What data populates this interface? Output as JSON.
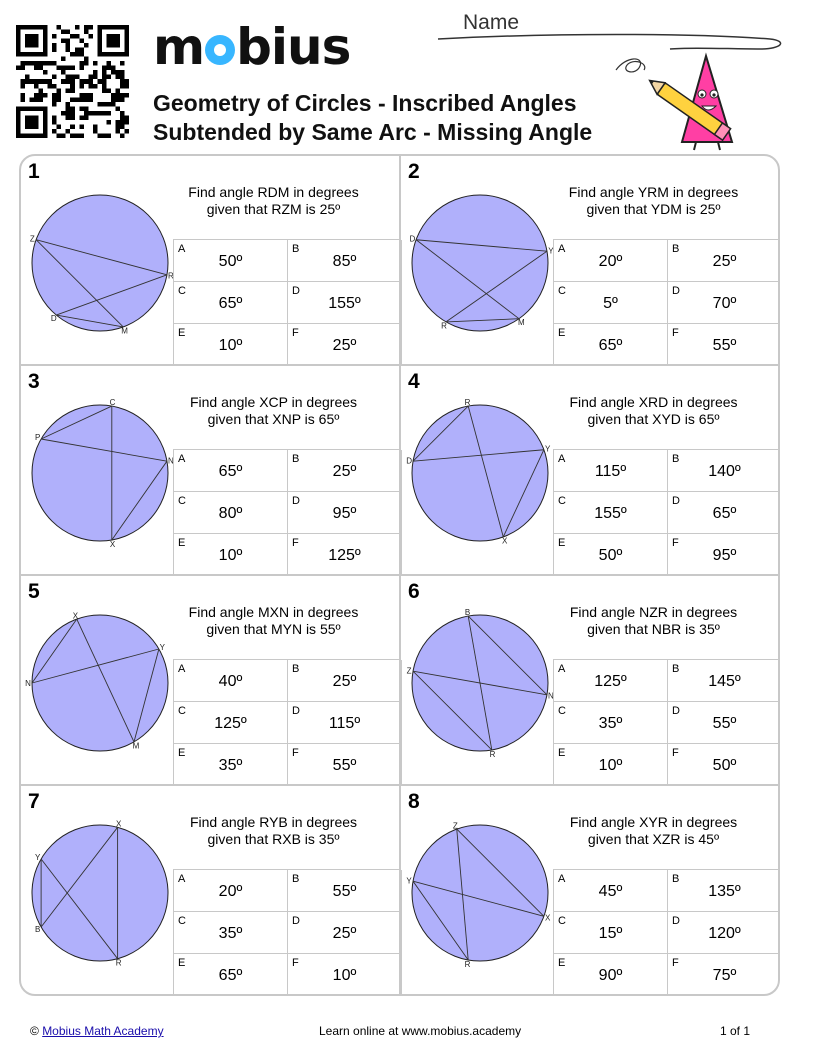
{
  "header": {
    "logo_text": "mobius",
    "title_line1": "Geometry of Circles - Inscribed Angles",
    "title_line2": "Subtended by Same Arc - Missing Angle",
    "name_label": "Name"
  },
  "problems": [
    {
      "number": "1",
      "line1": "Find angle RDM in degrees",
      "line2": "given that RZM is 25º",
      "points": [
        {
          "label": "Z",
          "angle": 160
        },
        {
          "label": "R",
          "angle": -10
        },
        {
          "label": "M",
          "angle": -70
        },
        {
          "label": "D",
          "angle": -130
        }
      ],
      "chords": [
        [
          "Z",
          "R"
        ],
        [
          "Z",
          "M"
        ],
        [
          "R",
          "D"
        ],
        [
          "D",
          "M"
        ]
      ],
      "options": [
        {
          "letter": "A",
          "value": "50º"
        },
        {
          "letter": "B",
          "value": "85º"
        },
        {
          "letter": "C",
          "value": "65º"
        },
        {
          "letter": "D",
          "value": "155º"
        },
        {
          "letter": "E",
          "value": "10º"
        },
        {
          "letter": "F",
          "value": "25º"
        }
      ]
    },
    {
      "number": "2",
      "line1": "Find angle YRM in degrees",
      "line2": "given that YDM is 25º",
      "points": [
        {
          "label": "D",
          "angle": 160
        },
        {
          "label": "Y",
          "angle": 10
        },
        {
          "label": "M",
          "angle": -55
        },
        {
          "label": "R",
          "angle": -120
        }
      ],
      "chords": [
        [
          "D",
          "Y"
        ],
        [
          "D",
          "M"
        ],
        [
          "R",
          "Y"
        ],
        [
          "R",
          "M"
        ]
      ],
      "options": [
        {
          "letter": "A",
          "value": "20º"
        },
        {
          "letter": "B",
          "value": "25º"
        },
        {
          "letter": "C",
          "value": "5º"
        },
        {
          "letter": "D",
          "value": "70º"
        },
        {
          "letter": "E",
          "value": "65º"
        },
        {
          "letter": "F",
          "value": "55º"
        }
      ]
    },
    {
      "number": "3",
      "line1": "Find angle XCP in degrees",
      "line2": "given that XNP is 65º",
      "points": [
        {
          "label": "C",
          "angle": 80
        },
        {
          "label": "N",
          "angle": 10
        },
        {
          "label": "X",
          "angle": -80
        },
        {
          "label": "P",
          "angle": 150
        }
      ],
      "chords": [
        [
          "C",
          "X"
        ],
        [
          "C",
          "P"
        ],
        [
          "N",
          "X"
        ],
        [
          "N",
          "P"
        ]
      ],
      "options": [
        {
          "letter": "A",
          "value": "65º"
        },
        {
          "letter": "B",
          "value": "25º"
        },
        {
          "letter": "C",
          "value": "80º"
        },
        {
          "letter": "D",
          "value": "95º"
        },
        {
          "letter": "E",
          "value": "10º"
        },
        {
          "letter": "F",
          "value": "125º"
        }
      ]
    },
    {
      "number": "4",
      "line1": "Find angle XRD in degrees",
      "line2": "given that XYD is 65º",
      "points": [
        {
          "label": "R",
          "angle": 100
        },
        {
          "label": "Y",
          "angle": 20
        },
        {
          "label": "X",
          "angle": -70
        },
        {
          "label": "D",
          "angle": 170
        }
      ],
      "chords": [
        [
          "R",
          "X"
        ],
        [
          "R",
          "D"
        ],
        [
          "Y",
          "X"
        ],
        [
          "Y",
          "D"
        ]
      ],
      "options": [
        {
          "letter": "A",
          "value": "115º"
        },
        {
          "letter": "B",
          "value": "140º"
        },
        {
          "letter": "C",
          "value": "155º"
        },
        {
          "letter": "D",
          "value": "65º"
        },
        {
          "letter": "E",
          "value": "50º"
        },
        {
          "letter": "F",
          "value": "95º"
        }
      ]
    },
    {
      "number": "5",
      "line1": "Find angle MXN in degrees",
      "line2": "given that MYN is 55º",
      "points": [
        {
          "label": "X",
          "angle": 110
        },
        {
          "label": "Y",
          "angle": 30
        },
        {
          "label": "M",
          "angle": -60
        },
        {
          "label": "N",
          "angle": 180
        }
      ],
      "chords": [
        [
          "X",
          "M"
        ],
        [
          "X",
          "N"
        ],
        [
          "Y",
          "M"
        ],
        [
          "Y",
          "N"
        ]
      ],
      "options": [
        {
          "letter": "A",
          "value": "40º"
        },
        {
          "letter": "B",
          "value": "25º"
        },
        {
          "letter": "C",
          "value": "125º"
        },
        {
          "letter": "D",
          "value": "115º"
        },
        {
          "letter": "E",
          "value": "35º"
        },
        {
          "letter": "F",
          "value": "55º"
        }
      ]
    },
    {
      "number": "6",
      "line1": "Find angle NZR in degrees",
      "line2": "given that NBR is 35º",
      "points": [
        {
          "label": "B",
          "angle": 100
        },
        {
          "label": "Z",
          "angle": 170
        },
        {
          "label": "R",
          "angle": -80
        },
        {
          "label": "N",
          "angle": -10
        }
      ],
      "chords": [
        [
          "Z",
          "N"
        ],
        [
          "Z",
          "R"
        ],
        [
          "B",
          "N"
        ],
        [
          "B",
          "R"
        ]
      ],
      "options": [
        {
          "letter": "A",
          "value": "125º"
        },
        {
          "letter": "B",
          "value": "145º"
        },
        {
          "letter": "C",
          "value": "35º"
        },
        {
          "letter": "D",
          "value": "55º"
        },
        {
          "letter": "E",
          "value": "10º"
        },
        {
          "letter": "F",
          "value": "50º"
        }
      ]
    },
    {
      "number": "7",
      "line1": "Find angle RYB in degrees",
      "line2": "given that RXB is 35º",
      "points": [
        {
          "label": "X",
          "angle": 75
        },
        {
          "label": "Y",
          "angle": 150
        },
        {
          "label": "B",
          "angle": -150
        },
        {
          "label": "R",
          "angle": -75
        }
      ],
      "chords": [
        [
          "Y",
          "R"
        ],
        [
          "Y",
          "B"
        ],
        [
          "X",
          "R"
        ],
        [
          "X",
          "B"
        ]
      ],
      "options": [
        {
          "letter": "A",
          "value": "20º"
        },
        {
          "letter": "B",
          "value": "55º"
        },
        {
          "letter": "C",
          "value": "35º"
        },
        {
          "letter": "D",
          "value": "25º"
        },
        {
          "letter": "E",
          "value": "65º"
        },
        {
          "letter": "F",
          "value": "10º"
        }
      ]
    },
    {
      "number": "8",
      "line1": "Find angle XYR in degrees",
      "line2": "given that XZR is 45º",
      "points": [
        {
          "label": "Z",
          "angle": 110
        },
        {
          "label": "X",
          "angle": -20
        },
        {
          "label": "R",
          "angle": -100
        },
        {
          "label": "Y",
          "angle": 170
        }
      ],
      "chords": [
        [
          "Y",
          "X"
        ],
        [
          "Y",
          "R"
        ],
        [
          "Z",
          "X"
        ],
        [
          "Z",
          "R"
        ]
      ],
      "options": [
        {
          "letter": "A",
          "value": "45º"
        },
        {
          "letter": "B",
          "value": "135º"
        },
        {
          "letter": "C",
          "value": "15º"
        },
        {
          "letter": "D",
          "value": "120º"
        },
        {
          "letter": "E",
          "value": "90º"
        },
        {
          "letter": "F",
          "value": "75º"
        }
      ]
    }
  ],
  "footer": {
    "copyright_symbol": "©",
    "academy_link": "Mobius Math Academy",
    "learn_online": "Learn online at www.mobius.academy",
    "page": "1 of 1"
  },
  "colors": {
    "circle_fill": "#b0b0fb",
    "circle_stroke": "#222222",
    "border": "#c8c8c8"
  }
}
